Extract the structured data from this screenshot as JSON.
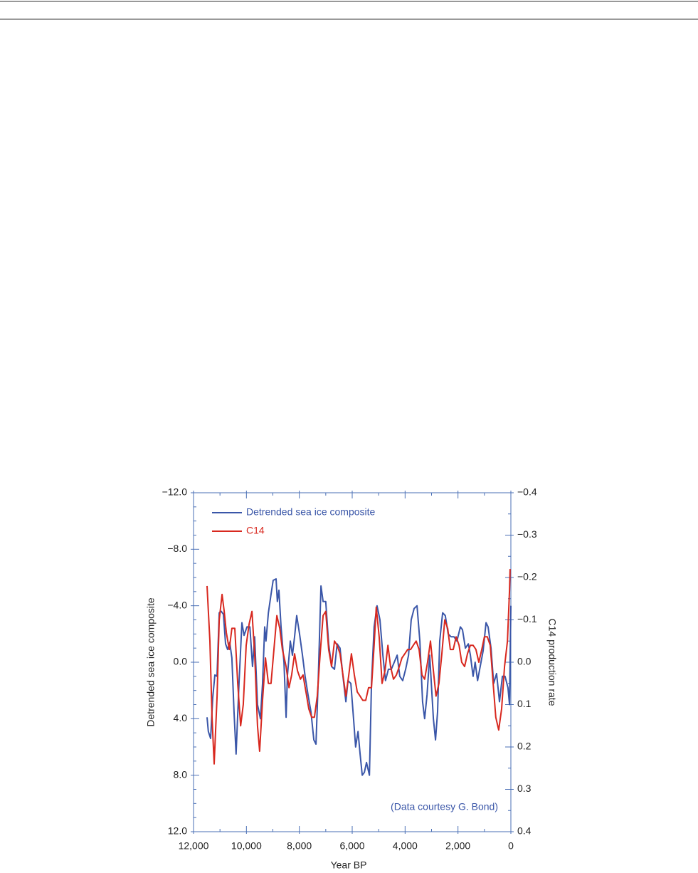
{
  "chart_data": {
    "type": "line",
    "xlabel": "Year BP",
    "ylabel": "Detrended sea ice composite",
    "y2label": "C14 production rate",
    "annotation": "(Data courtesy G. Bond)",
    "xlim": [
      12000,
      0
    ],
    "ylim": [
      -12,
      12
    ],
    "y2lim": [
      -0.4,
      0.4
    ],
    "xticks": [
      {
        "value": 12000,
        "label": "12,000"
      },
      {
        "value": 10000,
        "label": "10,000"
      },
      {
        "value": 8000,
        "label": "8,000"
      },
      {
        "value": 6000,
        "label": "6,000"
      },
      {
        "value": 4000,
        "label": "4,000"
      },
      {
        "value": 2000,
        "label": "2,000"
      },
      0
    ],
    "yticks": [
      {
        "value": -12,
        "label": "−12.0"
      },
      {
        "value": -8,
        "label": "−8.0"
      },
      {
        "value": -4,
        "label": "−4.0"
      },
      {
        "value": 0,
        "label": "0.0"
      },
      {
        "value": 4,
        "label": "4.0"
      },
      {
        "value": 8,
        "label": "8.0"
      },
      {
        "value": 12,
        "label": "12.0"
      }
    ],
    "y2ticks": [
      {
        "value": -0.4,
        "label": "−0.4"
      },
      {
        "value": -0.3,
        "label": "−0.3"
      },
      {
        "value": -0.2,
        "label": "−0.2"
      },
      {
        "value": -0.1,
        "label": "−0.1"
      },
      {
        "value": 0,
        "label": "0.0"
      },
      0.1,
      0.2,
      0.3,
      0.4
    ],
    "legend": "upper left",
    "series": [
      {
        "name": "Detrended sea ice composite",
        "color": "#3a56a8",
        "x": [
          11490,
          11440,
          11355,
          11274,
          11192,
          11111,
          11030,
          10950,
          10870,
          10790,
          10710,
          10630,
          10550,
          10470,
          10390,
          10280,
          10170,
          10090,
          9980,
          9870,
          9770,
          9690,
          9580,
          9470,
          9390,
          9310,
          9260,
          9170,
          9070,
          8990,
          8880,
          8830,
          8770,
          8690,
          8580,
          8500,
          8450,
          8340,
          8260,
          8180,
          8100,
          7990,
          7880,
          7780,
          7670,
          7560,
          7450,
          7370,
          7290,
          7180,
          7100,
          7000,
          6890,
          6780,
          6670,
          6570,
          6460,
          6350,
          6240,
          6160,
          6050,
          5950,
          5870,
          5780,
          5700,
          5620,
          5540,
          5460,
          5350,
          5270,
          5170,
          5060,
          4950,
          4840,
          4740,
          4630,
          4520,
          4410,
          4300,
          4200,
          4090,
          3980,
          3870,
          3770,
          3660,
          3550,
          3440,
          3340,
          3260,
          3170,
          3070,
          2930,
          2850,
          2770,
          2690,
          2580,
          2480,
          2370,
          2260,
          2150,
          2040,
          1910,
          1830,
          1720,
          1610,
          1530,
          1430,
          1350,
          1260,
          1160,
          1050,
          940,
          860,
          750,
          650,
          540,
          430,
          320,
          220,
          110,
          50,
          0
        ],
        "values": [
          3.9,
          4.9,
          5.4,
          2.5,
          0.9,
          1.0,
          -3.5,
          -3.6,
          -3.4,
          -1.3,
          -0.9,
          -1.4,
          -0.3,
          3.5,
          6.5,
          1.5,
          -2.8,
          -1.9,
          -2.5,
          -2.5,
          0.3,
          -1.8,
          3.0,
          4.0,
          1.5,
          -2.5,
          -1.5,
          -3.5,
          -4.8,
          -5.8,
          -5.9,
          -4.3,
          -5.1,
          -2.5,
          0,
          3.9,
          1.0,
          -1.5,
          -0.5,
          -1.8,
          -3.3,
          -2.0,
          -0.5,
          1.0,
          2.3,
          3.5,
          5.5,
          5.8,
          1.5,
          -5.4,
          -4.3,
          -4.3,
          -1.3,
          0.3,
          0.5,
          -1.3,
          -1.0,
          1.0,
          2.8,
          1.3,
          1.5,
          4.0,
          6.0,
          4.9,
          6.5,
          8.0,
          7.8,
          7.1,
          8.0,
          1.5,
          -2.5,
          -4.0,
          -3.0,
          -0.5,
          1.3,
          0.5,
          0.5,
          0,
          -0.5,
          1.0,
          1.3,
          0.5,
          -0.5,
          -3.0,
          -3.8,
          -4.0,
          -1.5,
          2.8,
          4.0,
          2.3,
          -0.5,
          4.0,
          5.5,
          3.5,
          -1.5,
          -3.5,
          -3.3,
          -2.0,
          -1.8,
          -1.8,
          -1.5,
          -2.5,
          -2.3,
          -1.0,
          -1.3,
          -0.5,
          1.0,
          0,
          1.3,
          0.3,
          -0.8,
          -2.8,
          -2.5,
          -1.0,
          1.5,
          0.8,
          2.8,
          1.0,
          1.0,
          1.8,
          3.0,
          -4.0
        ]
      },
      {
        "name": "C14",
        "color": "#d8281f",
        "axis": "y2",
        "x": [
          11490,
          11380,
          11300,
          11220,
          11110,
          11030,
          10920,
          10840,
          10760,
          10650,
          10550,
          10440,
          10330,
          10220,
          10120,
          10010,
          9900,
          9790,
          9690,
          9580,
          9500,
          9390,
          9280,
          9170,
          9070,
          8960,
          8850,
          8740,
          8640,
          8500,
          8390,
          8290,
          8180,
          8070,
          7960,
          7860,
          7750,
          7640,
          7530,
          7430,
          7320,
          7210,
          7100,
          7000,
          6890,
          6780,
          6670,
          6570,
          6460,
          6350,
          6240,
          6130,
          6030,
          5920,
          5810,
          5700,
          5600,
          5490,
          5380,
          5270,
          5170,
          5090,
          4980,
          4870,
          4760,
          4650,
          4550,
          4440,
          4330,
          4220,
          4120,
          4010,
          3900,
          3790,
          3690,
          3580,
          3470,
          3360,
          3260,
          3150,
          3040,
          2930,
          2830,
          2720,
          2610,
          2500,
          2390,
          2290,
          2180,
          2070,
          1960,
          1860,
          1750,
          1640,
          1530,
          1430,
          1320,
          1210,
          1100,
          1000,
          890,
          780,
          670,
          570,
          460,
          350,
          240,
          130,
          50,
          30
        ],
        "values": [
          -0.18,
          -0.05,
          0.13,
          0.24,
          0.08,
          -0.1,
          -0.16,
          -0.12,
          -0.07,
          -0.03,
          -0.08,
          -0.08,
          0.05,
          0.15,
          0.1,
          -0.04,
          -0.09,
          -0.12,
          -0.02,
          0.15,
          0.21,
          0.09,
          -0.01,
          0.05,
          0.05,
          -0.03,
          -0.11,
          -0.08,
          -0.03,
          0.01,
          0.06,
          0.03,
          -0.02,
          0.02,
          0.04,
          0.03,
          0.07,
          0.11,
          0.13,
          0.13,
          0.08,
          -0.02,
          -0.11,
          -0.12,
          -0.03,
          0.01,
          -0.05,
          -0.04,
          -0.02,
          0.03,
          0.08,
          0.03,
          -0.02,
          0.03,
          0.07,
          0.08,
          0.09,
          0.09,
          0.06,
          0.06,
          -0.04,
          -0.13,
          -0.06,
          0.05,
          0.02,
          -0.04,
          0.01,
          0.04,
          0.03,
          0.01,
          -0.01,
          -0.02,
          -0.03,
          -0.03,
          -0.04,
          -0.05,
          -0.03,
          0.03,
          0.04,
          0,
          -0.05,
          0.02,
          0.08,
          0.05,
          -0.02,
          -0.1,
          -0.08,
          -0.03,
          -0.03,
          -0.06,
          -0.04,
          0,
          0.01,
          -0.02,
          -0.04,
          -0.04,
          -0.03,
          0,
          -0.03,
          -0.06,
          -0.06,
          -0.04,
          0.05,
          0.13,
          0.16,
          0.11,
          0.01,
          -0.05,
          -0.17,
          -0.22
        ]
      }
    ]
  }
}
